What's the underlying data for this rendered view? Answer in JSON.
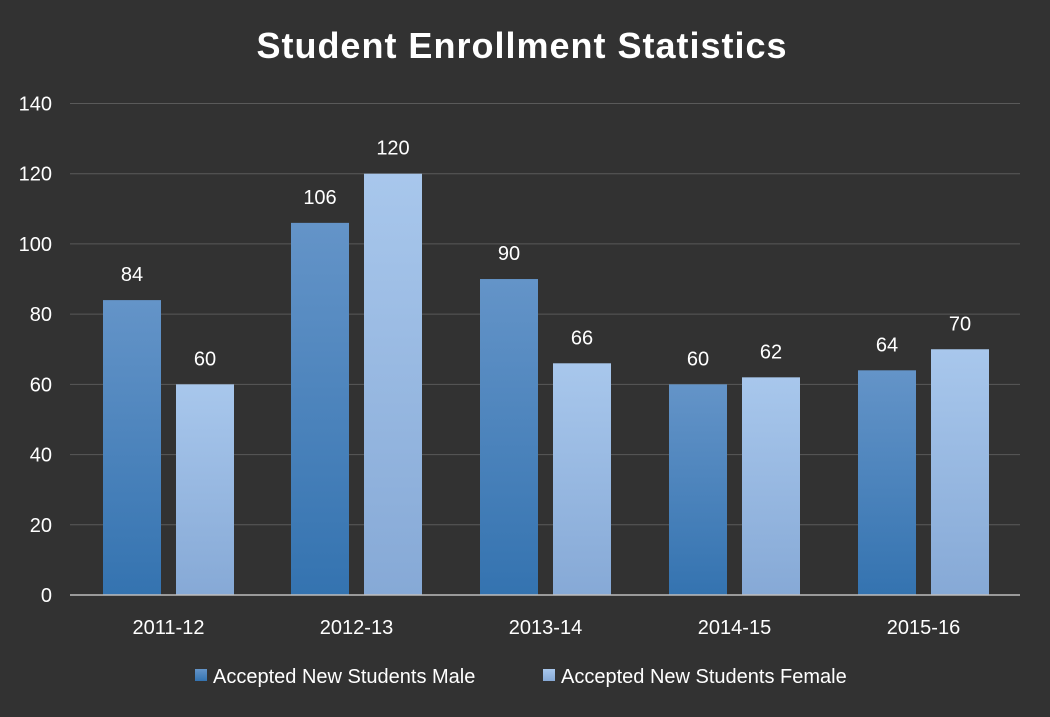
{
  "chart_data": {
    "type": "bar",
    "title": "Student Enrollment Statistics",
    "xlabel": "",
    "ylabel": "",
    "categories": [
      "2011-12",
      "2012-13",
      "2013-14",
      "2014-15",
      "2015-16"
    ],
    "series": [
      {
        "name": "Accepted New Students Male",
        "values": [
          84,
          106,
          90,
          60,
          64
        ],
        "color": "#4A86C2"
      },
      {
        "name": "Accepted New Students Female",
        "values": [
          60,
          120,
          66,
          62,
          70
        ],
        "color": "#9EC0E8"
      }
    ],
    "ylim": [
      0,
      140
    ],
    "yticks": [
      0,
      20,
      40,
      60,
      80,
      100,
      120,
      140
    ],
    "grid": true,
    "legend_position": "bottom",
    "data_labels": true
  },
  "colors": {
    "background": "#323232",
    "gridline": "#5a5a5a",
    "axis": "#bdbdbd",
    "text": "#ffffff"
  }
}
